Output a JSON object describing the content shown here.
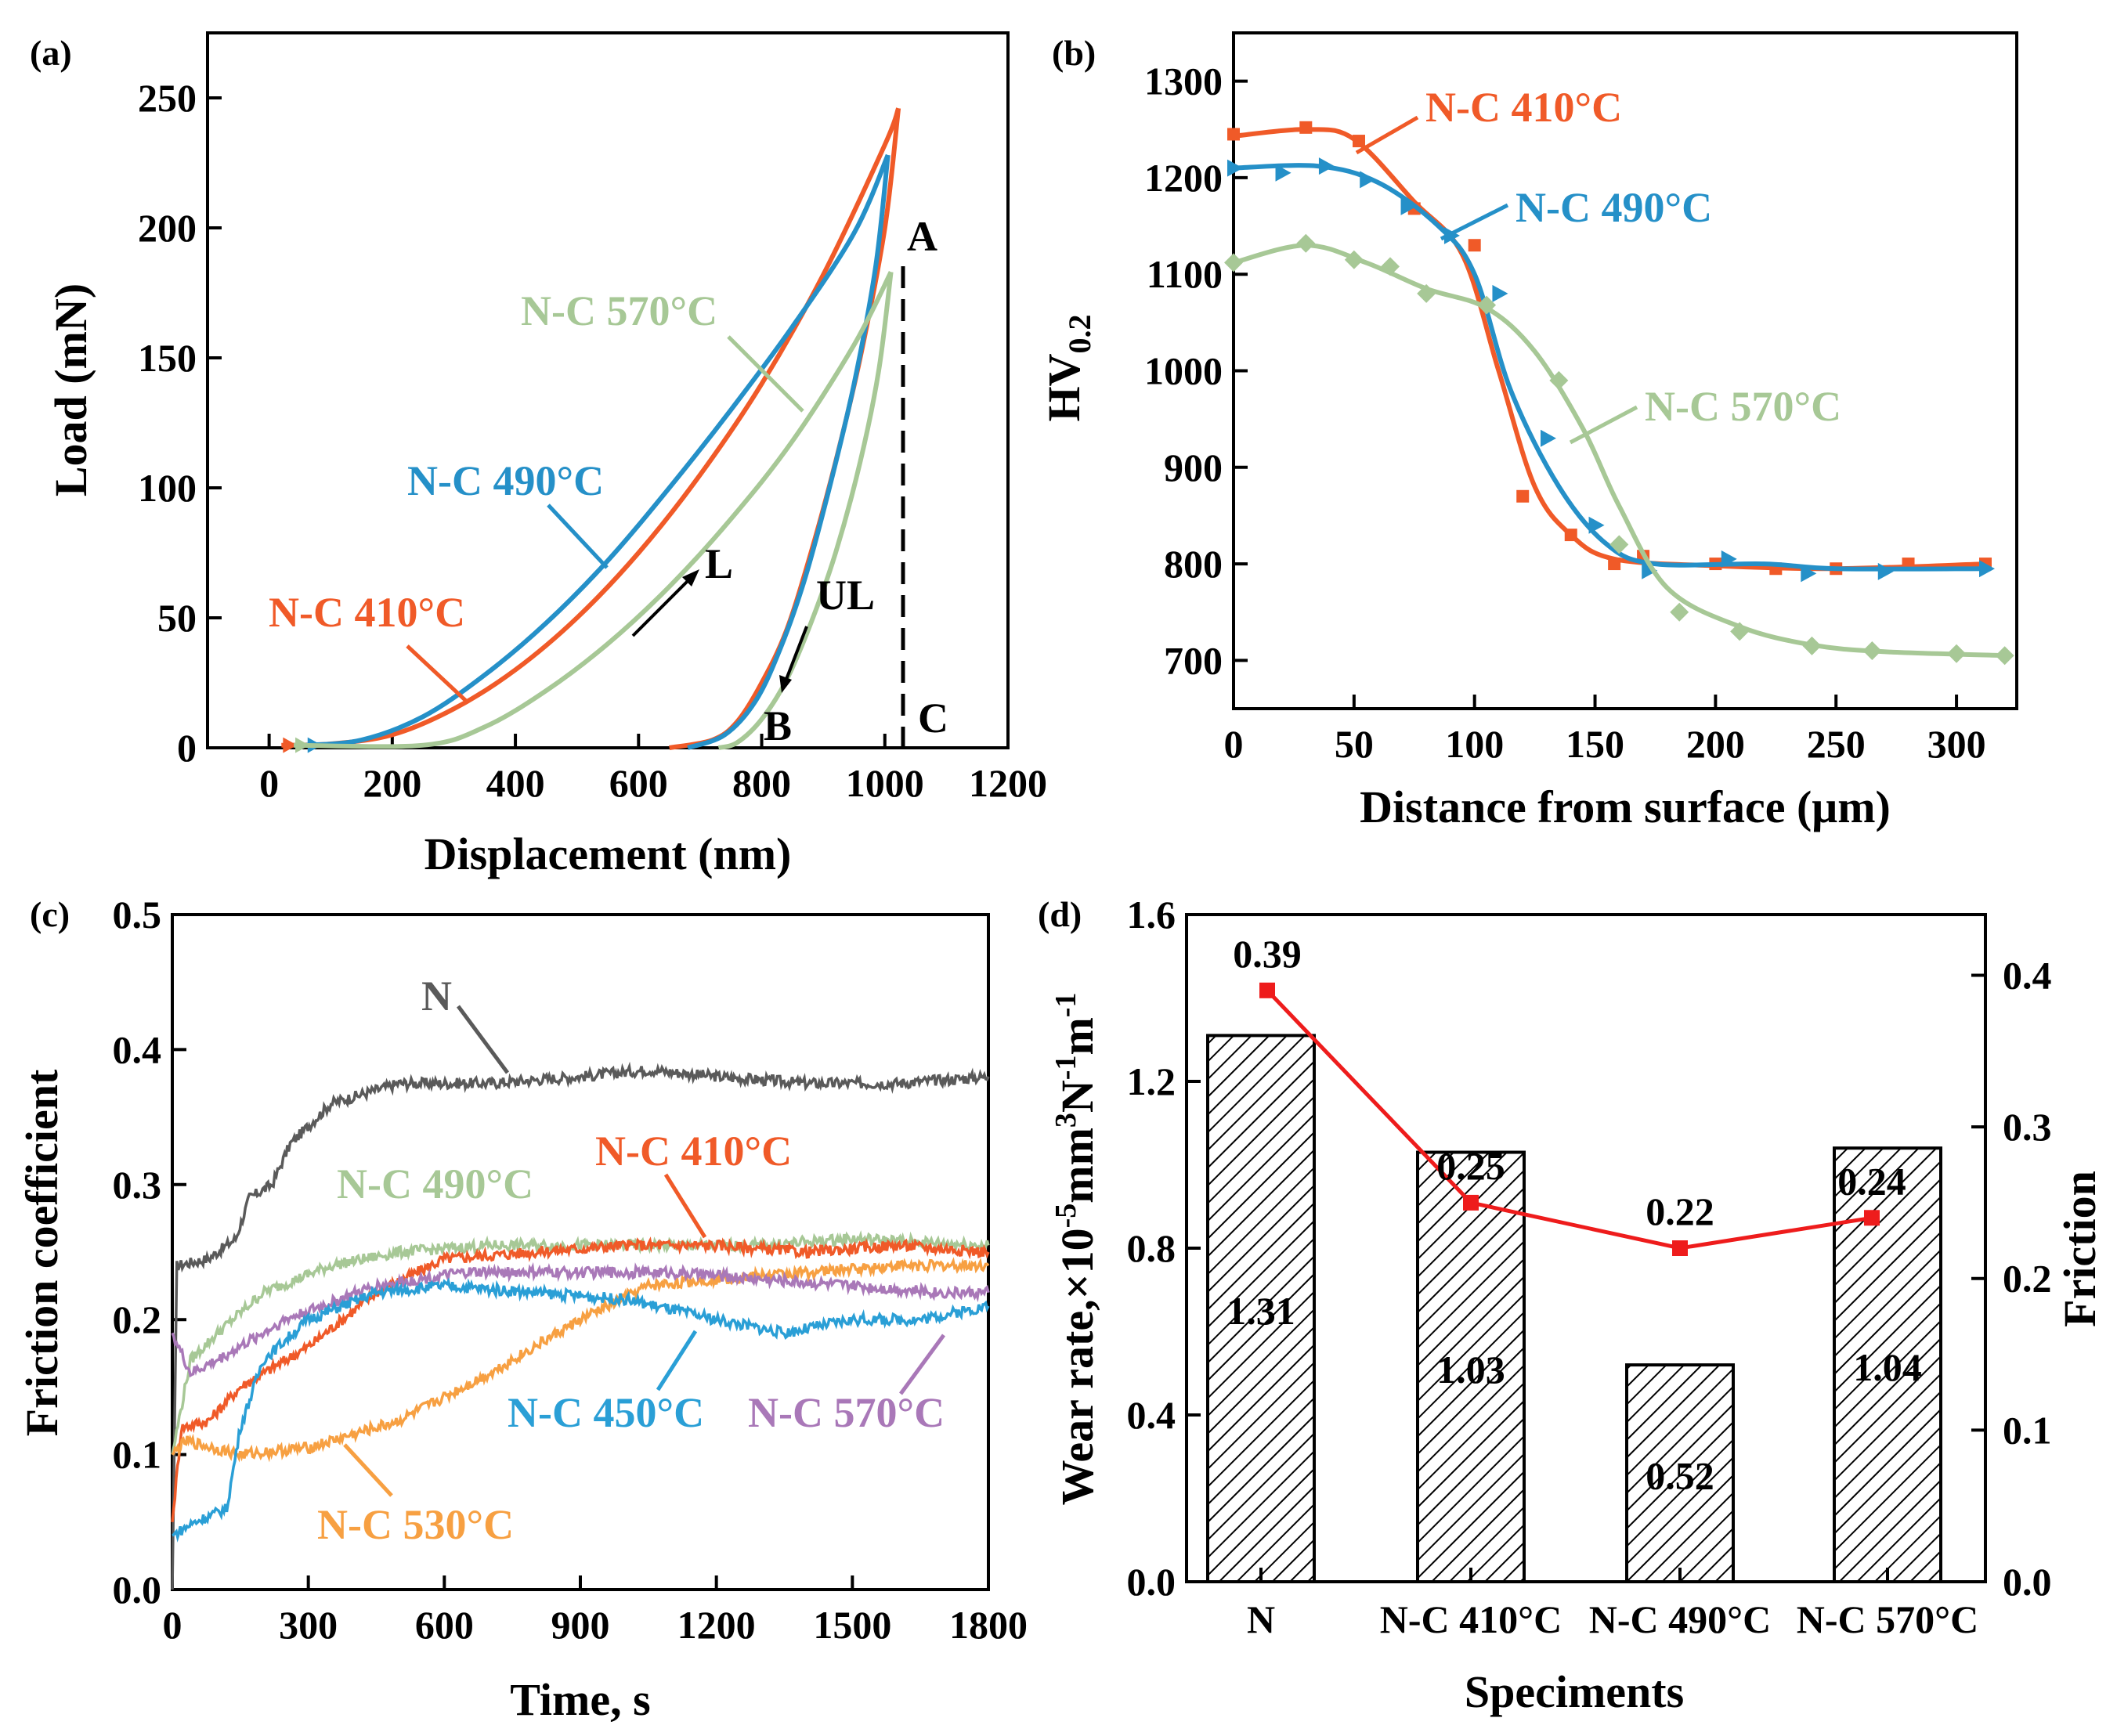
{
  "colors": {
    "nc410": "#f05a28",
    "nc490": "#2590c8",
    "nc570": "#a7c896",
    "nc450": "#2a9fd6",
    "nc530": "#f7a042",
    "nc570c": "#a978b8",
    "n": "#5a5a5a",
    "friction": "#ee1c1c"
  },
  "chart_data": [
    {
      "panel": "(a)",
      "type": "line",
      "xlabel": "Displacement (nm)",
      "ylabel": "Load (mN)",
      "xlim": [
        -100,
        1200
      ],
      "ylim": [
        0,
        275
      ],
      "xticks": [
        "0",
        "200",
        "400",
        "600",
        "800",
        "1000",
        "1200"
      ],
      "yticks": [
        "0",
        "50",
        "100",
        "150",
        "200",
        "250"
      ],
      "series": [
        {
          "name": "N-C 410°C",
          "color_key": "nc410",
          "loading": [
            [
              20,
              1
            ],
            [
              100,
              1.5
            ],
            [
              200,
              5
            ],
            [
              300,
              15
            ],
            [
              400,
              30
            ],
            [
              500,
              50
            ],
            [
              600,
              75
            ],
            [
              700,
              105
            ],
            [
              800,
              140
            ],
            [
              900,
              182
            ],
            [
              1000,
              232
            ],
            [
              1022,
              246
            ]
          ],
          "unloading": [
            [
              1022,
              246
            ],
            [
              1000,
              200
            ],
            [
              960,
              150
            ],
            [
              920,
              110
            ],
            [
              880,
              75
            ],
            [
              840,
              45
            ],
            [
              800,
              25
            ],
            [
              760,
              10
            ],
            [
              720,
              3
            ],
            [
              650,
              0
            ]
          ]
        },
        {
          "name": "N-C 490°C",
          "color_key": "nc490",
          "loading": [
            [
              60,
              1
            ],
            [
              150,
              3
            ],
            [
              250,
              12
            ],
            [
              350,
              28
            ],
            [
              450,
              48
            ],
            [
              550,
              72
            ],
            [
              650,
              100
            ],
            [
              750,
              130
            ],
            [
              850,
              162
            ],
            [
              950,
              198
            ],
            [
              1005,
              228
            ]
          ],
          "unloading": [
            [
              1005,
              228
            ],
            [
              985,
              185
            ],
            [
              950,
              140
            ],
            [
              910,
              100
            ],
            [
              870,
              65
            ],
            [
              830,
              38
            ],
            [
              790,
              18
            ],
            [
              740,
              5
            ],
            [
              680,
              0
            ]
          ]
        },
        {
          "name": "N-C 570°C",
          "color_key": "nc570",
          "loading": [
            [
              40,
              1
            ],
            [
              250,
              1
            ],
            [
              350,
              8
            ],
            [
              450,
              22
            ],
            [
              550,
              40
            ],
            [
              650,
              62
            ],
            [
              750,
              88
            ],
            [
              850,
              118
            ],
            [
              950,
              155
            ],
            [
              1010,
              183
            ]
          ],
          "unloading": [
            [
              1010,
              183
            ],
            [
              990,
              145
            ],
            [
              960,
              110
            ],
            [
              920,
              75
            ],
            [
              880,
              48
            ],
            [
              840,
              26
            ],
            [
              800,
              11
            ],
            [
              760,
              2
            ],
            [
              730,
              0
            ]
          ]
        }
      ],
      "annotations": [
        "A",
        "B",
        "C",
        "L",
        "UL"
      ],
      "labels": [
        "N-C 570°C",
        "N-C 490°C",
        "N-C 410°C"
      ]
    },
    {
      "panel": "(b)",
      "type": "line",
      "xlabel": "Distance from surface (μm)",
      "ylabel": "HV",
      "ylabel_sub": "0.2",
      "xlim": [
        0,
        325
      ],
      "ylim": [
        650,
        1350
      ],
      "xticks": [
        "0",
        "50",
        "100",
        "150",
        "200",
        "250",
        "300"
      ],
      "yticks": [
        "700",
        "800",
        "900",
        "1000",
        "1100",
        "1200",
        "1300"
      ],
      "series": [
        {
          "name": "N-C 410°C",
          "color_key": "nc410",
          "marker": "square",
          "points": [
            [
              0,
              1245
            ],
            [
              30,
              1252
            ],
            [
              52,
              1238
            ],
            [
              75,
              1168
            ],
            [
              100,
              1130
            ],
            [
              120,
              870
            ],
            [
              140,
              830
            ],
            [
              158,
              800
            ],
            [
              170,
              808
            ],
            [
              200,
              800
            ],
            [
              225,
              795
            ],
            [
              250,
              795
            ],
            [
              280,
              800
            ],
            [
              312,
              800
            ]
          ],
          "curve": [
            [
              0,
              1243
            ],
            [
              30,
              1250
            ],
            [
              50,
              1240
            ],
            [
              75,
              1175
            ],
            [
              95,
              1120
            ],
            [
              110,
              1000
            ],
            [
              125,
              880
            ],
            [
              140,
              830
            ],
            [
              158,
              805
            ],
            [
              200,
              798
            ],
            [
              250,
              795
            ],
            [
              312,
              800
            ]
          ]
        },
        {
          "name": "N-C 490°C",
          "color_key": "nc490",
          "marker": "triangle",
          "points": [
            [
              0,
              1210
            ],
            [
              20,
              1205
            ],
            [
              38,
              1212
            ],
            [
              55,
              1198
            ],
            [
              72,
              1170
            ],
            [
              90,
              1140
            ],
            [
              110,
              1080
            ],
            [
              130,
              930
            ],
            [
              150,
              840
            ],
            [
              172,
              793
            ],
            [
              205,
              805
            ],
            [
              238,
              790
            ],
            [
              270,
              792
            ],
            [
              312,
              795
            ]
          ],
          "curve": [
            [
              0,
              1210
            ],
            [
              35,
              1212
            ],
            [
              60,
              1195
            ],
            [
              85,
              1150
            ],
            [
              100,
              1100
            ],
            [
              115,
              980
            ],
            [
              135,
              880
            ],
            [
              155,
              820
            ],
            [
              175,
              800
            ],
            [
              220,
              800
            ],
            [
              250,
              795
            ],
            [
              312,
              795
            ]
          ]
        },
        {
          "name": "N-C 570°C",
          "color_key": "nc570",
          "marker": "diamond",
          "points": [
            [
              0,
              1112
            ],
            [
              30,
              1132
            ],
            [
              50,
              1115
            ],
            [
              65,
              1108
            ],
            [
              80,
              1080
            ],
            [
              105,
              1068
            ],
            [
              135,
              990
            ],
            [
              160,
              820
            ],
            [
              185,
              750
            ],
            [
              210,
              730
            ],
            [
              240,
              715
            ],
            [
              265,
              710
            ],
            [
              300,
              707
            ],
            [
              320,
              705
            ]
          ],
          "curve": [
            [
              0,
              1112
            ],
            [
              30,
              1130
            ],
            [
              55,
              1112
            ],
            [
              80,
              1085
            ],
            [
              105,
              1065
            ],
            [
              125,
              1020
            ],
            [
              145,
              940
            ],
            [
              160,
              860
            ],
            [
              180,
              775
            ],
            [
              210,
              735
            ],
            [
              240,
              716
            ],
            [
              270,
              709
            ],
            [
              320,
              705
            ]
          ]
        }
      ],
      "labels": [
        "N-C 410°C",
        "N-C 490°C",
        "N-C 570°C"
      ]
    },
    {
      "panel": "(c)",
      "type": "line",
      "xlabel": "Time, s",
      "ylabel": "Friction coefficient",
      "xlim": [
        0,
        1800
      ],
      "ylim": [
        0,
        0.5
      ],
      "xticks": [
        "0",
        "300",
        "600",
        "900",
        "1200",
        "1500",
        "1800"
      ],
      "yticks": [
        "0.0",
        "0.1",
        "0.2",
        "0.3",
        "0.4",
        "0.5"
      ],
      "series": [
        {
          "name": "N",
          "color_key": "n",
          "points": [
            [
              0,
              0
            ],
            [
              10,
              0.24
            ],
            [
              80,
              0.245
            ],
            [
              140,
              0.26
            ],
            [
              170,
              0.29
            ],
            [
              220,
              0.3
            ],
            [
              260,
              0.33
            ],
            [
              350,
              0.36
            ],
            [
              500,
              0.375
            ],
            [
              700,
              0.375
            ],
            [
              900,
              0.38
            ],
            [
              1050,
              0.385
            ],
            [
              1200,
              0.38
            ],
            [
              1400,
              0.375
            ],
            [
              1600,
              0.375
            ],
            [
              1800,
              0.38
            ]
          ]
        },
        {
          "name": "N-C 410°C",
          "color_key": "nc410",
          "points": [
            [
              0,
              0.05
            ],
            [
              20,
              0.12
            ],
            [
              80,
              0.125
            ],
            [
              150,
              0.15
            ],
            [
              300,
              0.18
            ],
            [
              450,
              0.22
            ],
            [
              600,
              0.245
            ],
            [
              800,
              0.25
            ],
            [
              1000,
              0.255
            ],
            [
              1200,
              0.255
            ],
            [
              1400,
              0.25
            ],
            [
              1600,
              0.255
            ],
            [
              1800,
              0.25
            ]
          ]
        },
        {
          "name": "N-C 490°C",
          "color_key": "nc570",
          "points": [
            [
              0,
              0.1
            ],
            [
              40,
              0.17
            ],
            [
              100,
              0.19
            ],
            [
              200,
              0.22
            ],
            [
              350,
              0.24
            ],
            [
              500,
              0.25
            ],
            [
              700,
              0.255
            ],
            [
              900,
              0.255
            ],
            [
              1100,
              0.255
            ],
            [
              1300,
              0.255
            ],
            [
              1500,
              0.26
            ],
            [
              1800,
              0.255
            ]
          ]
        },
        {
          "name": "N-C 450°C",
          "color_key": "nc450",
          "points": [
            [
              0,
              0.04
            ],
            [
              50,
              0.05
            ],
            [
              120,
              0.06
            ],
            [
              150,
              0.12
            ],
            [
              200,
              0.17
            ],
            [
              300,
              0.2
            ],
            [
              450,
              0.22
            ],
            [
              600,
              0.225
            ],
            [
              800,
              0.22
            ],
            [
              1000,
              0.215
            ],
            [
              1200,
              0.2
            ],
            [
              1350,
              0.19
            ],
            [
              1500,
              0.2
            ],
            [
              1650,
              0.2
            ],
            [
              1800,
              0.21
            ]
          ]
        },
        {
          "name": "N-C 530°C",
          "color_key": "nc530",
          "points": [
            [
              0,
              0.1
            ],
            [
              30,
              0.11
            ],
            [
              150,
              0.1
            ],
            [
              300,
              0.105
            ],
            [
              500,
              0.125
            ],
            [
              700,
              0.16
            ],
            [
              900,
              0.2
            ],
            [
              1050,
              0.225
            ],
            [
              1200,
              0.23
            ],
            [
              1400,
              0.235
            ],
            [
              1600,
              0.24
            ],
            [
              1800,
              0.24
            ]
          ]
        },
        {
          "name": "N-C 570°C",
          "color_key": "nc570c",
          "points": [
            [
              0,
              0.19
            ],
            [
              40,
              0.16
            ],
            [
              100,
              0.17
            ],
            [
              250,
              0.2
            ],
            [
              450,
              0.225
            ],
            [
              650,
              0.235
            ],
            [
              900,
              0.235
            ],
            [
              1100,
              0.235
            ],
            [
              1300,
              0.23
            ],
            [
              1500,
              0.225
            ],
            [
              1700,
              0.22
            ],
            [
              1800,
              0.22
            ]
          ]
        }
      ],
      "labels": [
        "N",
        "N-C 410°C",
        "N-C 490°C",
        "N-C 450°C",
        "N-C 570°C",
        "N-C 530°C"
      ]
    },
    {
      "panel": "(d)",
      "type": "bar",
      "xlabel": "Speciments",
      "ylabel": "Wear rate,×10",
      "ylabel_parts": [
        "Wear rate,×10",
        "-5",
        "mm",
        "3",
        "N",
        "-1",
        "m",
        "-1"
      ],
      "y2label": "Friction",
      "categories": [
        "N",
        "N-C 410°C",
        "N-C 490°C",
        "N-C 570°C"
      ],
      "values": [
        1.31,
        1.03,
        0.52,
        1.04
      ],
      "value_labels": [
        "1.31",
        "1.03",
        "0.52",
        "1.04"
      ],
      "ylim": [
        0,
        1.6
      ],
      "yticks": [
        "0.0",
        "0.4",
        "0.8",
        "1.2",
        "1.6"
      ],
      "y2lim": [
        0,
        0.44
      ],
      "y2ticks": [
        "0.0",
        "0.1",
        "0.2",
        "0.3",
        "0.4"
      ],
      "friction": [
        0.39,
        0.25,
        0.22,
        0.24
      ],
      "friction_labels": [
        "0.39",
        "0.25",
        "0.22",
        "0.24"
      ]
    }
  ]
}
